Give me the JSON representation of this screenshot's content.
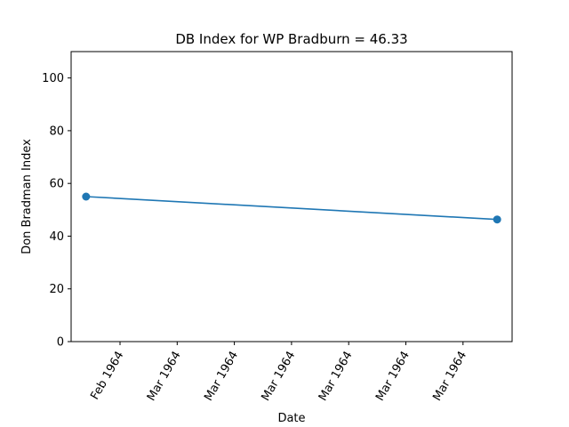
{
  "chart_data": {
    "type": "line",
    "title": "DB Index for WP Bradburn = 46.33",
    "xlabel": "Date",
    "ylabel": "Don Bradman Index",
    "x_tick_labels": [
      "Feb 1964",
      "Mar 1964",
      "Mar 1964",
      "Mar 1964",
      "Mar 1964",
      "Mar 1964",
      "Mar 1964"
    ],
    "y_ticks": [
      0,
      20,
      40,
      60,
      80,
      100
    ],
    "ylim": [
      0,
      110
    ],
    "grid": false,
    "series": [
      {
        "color": "#1f77b4",
        "marker": "circle",
        "points": [
          {
            "x": "1964-01-25",
            "y": 55.0
          },
          {
            "x": "1964-03-20",
            "y": 46.33
          }
        ]
      }
    ]
  }
}
